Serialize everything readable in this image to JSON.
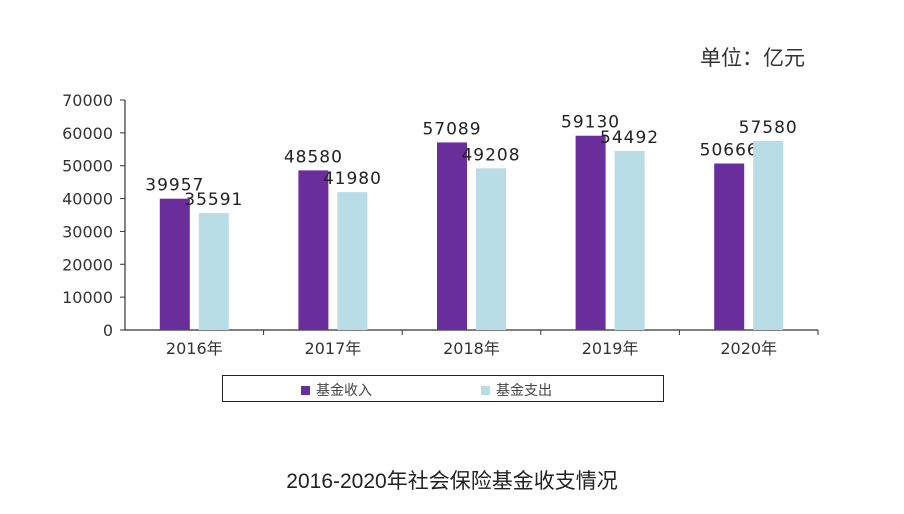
{
  "unit_label": "单位：亿元",
  "caption": "2016-2020年社会保险基金收支情况",
  "colors": {
    "income": "#6a2d9c",
    "expense": "#b8dde6",
    "axis": "#333333"
  },
  "chart_data": {
    "type": "bar",
    "title": "",
    "xlabel": "",
    "ylabel": "",
    "categories": [
      "2016年",
      "2017年",
      "2018年",
      "2019年",
      "2020年"
    ],
    "series": [
      {
        "name": "基金收入",
        "values": [
          39957,
          48580,
          57089,
          59130,
          50666
        ]
      },
      {
        "name": "基金支出",
        "values": [
          35591,
          41980,
          49208,
          54492,
          57580
        ]
      }
    ],
    "ylim": [
      0,
      70000
    ],
    "yticks": [
      "0",
      "10000",
      "20000",
      "30000",
      "40000",
      "50000",
      "60000",
      "70000"
    ],
    "grid": false,
    "legend_position": "bottom"
  }
}
